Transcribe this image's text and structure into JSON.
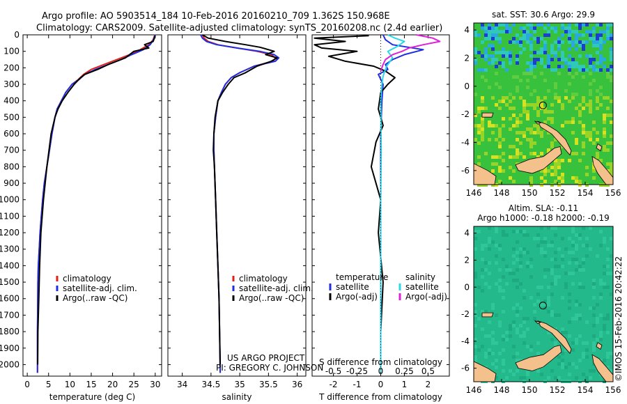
{
  "header": {
    "line1": "Argo profile: AO 5903514_184 10-Feb-2016 20160210_709 1.362S 150.968E",
    "line2": "Climatology: CARS2009. Satellite-adjusted climatology: synTS_20160208.nc (2.4d earlier)"
  },
  "colors": {
    "climatology": "#e0201b",
    "satellite": "#1f2ee0",
    "argo": "#000000",
    "sat_diff_temp": "#29d8e8",
    "argo_diff_sal": "#e020d8",
    "land": "#f4c08c",
    "ssh_sea": "#23b98a"
  },
  "footer": {
    "project": "US ARGO PROJECT",
    "pi": "PI: GREGORY C. JOHNSON",
    "imos_stamp": "©IMOS 15-Feb-2016 20:42:22"
  },
  "chart_data": [
    {
      "type": "line",
      "title": "",
      "xlabel": "temperature (deg C)",
      "ylabel": "",
      "xlim": [
        -1,
        31.5
      ],
      "ylim": [
        2070,
        0
      ],
      "xticks": [
        "0",
        "5",
        "10",
        "15",
        "20",
        "25",
        "30"
      ],
      "xtick_values": [
        0,
        5,
        10,
        15,
        20,
        25,
        30
      ],
      "yticks": [
        "0",
        "100",
        "200",
        "300",
        "400",
        "500",
        "600",
        "700",
        "800",
        "900",
        "1000",
        "1100",
        "1200",
        "1300",
        "1400",
        "1500",
        "1600",
        "1700",
        "1800",
        "1900",
        "2000"
      ],
      "ytick_values": [
        0,
        100,
        200,
        300,
        400,
        500,
        600,
        700,
        800,
        900,
        1000,
        1100,
        1200,
        1300,
        1400,
        1500,
        1600,
        1700,
        1800,
        1900,
        2000
      ],
      "legend": [
        "climatology",
        "satellite-adj. clim.",
        "Argo(..raw -QC)"
      ],
      "series": [
        {
          "name": "climatology",
          "color": "#e0201b",
          "x": [
            29.9,
            29.5,
            28.5,
            26.5,
            24.0,
            21.0,
            18.0,
            15.0,
            13.2,
            12.0,
            10.5,
            9.0,
            8.0,
            7.0,
            6.5,
            5.8,
            5.2,
            4.6,
            4.0,
            3.6,
            3.3,
            3.0,
            2.8,
            2.6,
            2.5,
            2.4,
            2.4
          ],
          "y": [
            0,
            30,
            60,
            90,
            120,
            150,
            180,
            210,
            240,
            270,
            300,
            350,
            400,
            450,
            500,
            600,
            700,
            800,
            900,
            1000,
            1100,
            1200,
            1300,
            1400,
            1500,
            1800,
            2050
          ]
        },
        {
          "name": "satellite-adj. clim.",
          "color": "#1f2ee0",
          "x": [
            30.0,
            29.6,
            28.8,
            27.2,
            24.5,
            22.0,
            19.0,
            16.0,
            13.5,
            12.2,
            10.5,
            9.0,
            8.0,
            7.0,
            6.5,
            5.8,
            5.2,
            4.6,
            4.0,
            3.6,
            3.3,
            3.0,
            2.8,
            2.6,
            2.5,
            2.4,
            2.4
          ],
          "y": [
            0,
            30,
            60,
            90,
            120,
            150,
            180,
            210,
            240,
            270,
            300,
            350,
            400,
            450,
            500,
            600,
            700,
            800,
            900,
            1000,
            1100,
            1200,
            1300,
            1400,
            1500,
            1800,
            2050
          ]
        },
        {
          "name": "Argo(..raw -QC)",
          "color": "#000000",
          "x": [
            30.0,
            29.8,
            29.5,
            27.5,
            28.5,
            25.0,
            23.0,
            19.0,
            16.5,
            13.5,
            12.5,
            11.0,
            9.5,
            8.2,
            7.2,
            6.5,
            5.6,
            4.6,
            3.8,
            3.2,
            2.9,
            2.7,
            2.5,
            2.45
          ],
          "y": [
            5,
            20,
            40,
            60,
            80,
            100,
            140,
            180,
            210,
            240,
            260,
            300,
            350,
            400,
            450,
            500,
            600,
            800,
            1000,
            1200,
            1400,
            1600,
            1800,
            2000
          ]
        }
      ]
    },
    {
      "type": "line",
      "title": "",
      "xlabel": "salinity",
      "ylabel": "",
      "xlim": [
        33.75,
        36.15
      ],
      "ylim": [
        2070,
        0
      ],
      "xticks": [
        "34",
        "34.5",
        "35",
        "35.5",
        "36"
      ],
      "xtick_values": [
        34,
        34.5,
        35,
        35.5,
        36
      ],
      "legend": [
        "climatology",
        "satellite-adj. clim.",
        "Argo(..raw -QC)"
      ],
      "series": [
        {
          "name": "climatology",
          "color": "#e0201b",
          "x": [
            34.35,
            34.38,
            34.45,
            34.62,
            34.95,
            35.3,
            35.55,
            35.62,
            35.58,
            35.25,
            35.0,
            34.85,
            34.75,
            34.68,
            34.62,
            34.58,
            34.55,
            34.55,
            34.56,
            34.58,
            34.6,
            34.62,
            34.64,
            34.65,
            34.66
          ],
          "y": [
            0,
            20,
            40,
            60,
            80,
            100,
            120,
            140,
            160,
            190,
            230,
            260,
            300,
            350,
            400,
            500,
            600,
            700,
            800,
            1000,
            1200,
            1400,
            1600,
            1800,
            2050
          ]
        },
        {
          "name": "satellite-adj. clim.",
          "color": "#1f2ee0",
          "x": [
            34.32,
            34.35,
            34.42,
            34.6,
            34.95,
            35.35,
            35.6,
            35.68,
            35.62,
            35.25,
            35.0,
            34.85,
            34.75,
            34.68,
            34.62,
            34.58,
            34.55,
            34.55,
            34.56,
            34.58,
            34.6,
            34.62,
            34.64,
            34.65,
            34.66
          ],
          "y": [
            0,
            20,
            40,
            60,
            80,
            100,
            120,
            140,
            160,
            190,
            230,
            260,
            300,
            350,
            400,
            500,
            600,
            700,
            800,
            1000,
            1200,
            1400,
            1600,
            1800,
            2050
          ]
        },
        {
          "name": "Argo(..raw -QC)",
          "color": "#000000",
          "x": [
            34.35,
            34.45,
            34.75,
            35.1,
            35.35,
            35.5,
            35.6,
            35.45,
            35.65,
            35.55,
            35.3,
            35.1,
            34.9,
            34.8,
            34.7,
            34.62,
            34.57,
            34.55,
            34.54,
            34.56,
            34.58,
            34.6,
            34.62,
            34.64,
            34.65,
            34.66
          ],
          "y": [
            0,
            20,
            40,
            60,
            75,
            90,
            100,
            120,
            140,
            160,
            190,
            230,
            260,
            300,
            350,
            400,
            500,
            600,
            700,
            800,
            1000,
            1200,
            1400,
            1600,
            1800,
            2000
          ]
        }
      ]
    },
    {
      "type": "line",
      "title": "",
      "xlabel": "T difference from climatology",
      "xlabel2": "S difference from climatology",
      "xlim": [
        -2.9,
        2.9
      ],
      "ylim": [
        2070,
        0
      ],
      "xticks": [
        "-2",
        "-1",
        "0",
        "1",
        "2"
      ],
      "xtick_values": [
        -2,
        -1,
        0,
        1,
        2
      ],
      "xticks_top": [
        "-0.5",
        "-0.25",
        "0",
        "0.25",
        "0.5"
      ],
      "xtick_top_values": [
        -0.5,
        -0.25,
        0,
        0.25,
        0.5
      ],
      "legend": [
        "temperature",
        "satellite",
        "Argo(-adj)",
        "salinity",
        "satellite",
        "Argo(-adj)"
      ],
      "series": [
        {
          "name": "T satellite - clim",
          "color": "#1f2ee0",
          "x": [
            0.1,
            0.2,
            0.5,
            1.8,
            1.0,
            0.5,
            0.2,
            0.3,
            -0.1,
            0.0,
            0.1,
            0.05,
            0.0,
            0.0,
            0.0,
            0.0
          ],
          "y": [
            0,
            30,
            60,
            90,
            120,
            150,
            180,
            210,
            240,
            270,
            300,
            400,
            600,
            1000,
            1500,
            2050
          ]
        },
        {
          "name": "T Argo - adj",
          "color": "#000000",
          "x": [
            -0.5,
            -2.8,
            -1.5,
            -2.8,
            -2.5,
            -1.0,
            -2.2,
            -1.5,
            -0.3,
            0.2,
            0.6,
            0.3,
            0.0,
            -0.1,
            0.1,
            -0.2,
            -0.4,
            0.0,
            -0.1,
            0.1,
            0.0,
            0.0
          ],
          "y": [
            5,
            20,
            40,
            60,
            80,
            100,
            130,
            160,
            190,
            220,
            260,
            300,
            350,
            450,
            550,
            650,
            800,
            1000,
            1200,
            1500,
            1800,
            2000
          ]
        },
        {
          "name": "S satellite - clim",
          "color": "#29d8e8",
          "x": [
            0.3,
            0.6,
            1.0,
            0.7,
            0.3,
            0.5,
            0.25,
            0.1,
            0.05,
            0.0,
            0.02,
            0.0,
            0.0,
            0.0
          ],
          "y": [
            0,
            20,
            40,
            70,
            100,
            140,
            190,
            250,
            300,
            400,
            700,
            1000,
            1500,
            2050
          ]
        },
        {
          "name": "S Argo - adj",
          "color": "#e020d8",
          "x": [
            1.5,
            2.2,
            2.5,
            1.8,
            1.2,
            0.9,
            0.5,
            0.2,
            0.1,
            0.0
          ],
          "y": [
            0,
            20,
            40,
            60,
            80,
            100,
            120,
            150,
            180,
            220
          ]
        }
      ]
    },
    {
      "type": "heatmap",
      "title": "sat. SST: 30.6 Argo: 29.9",
      "xlim": [
        146,
        156
      ],
      "ylim": [
        -7,
        4.5
      ],
      "xticks": [
        "146",
        "148",
        "150",
        "152",
        "154",
        "156"
      ],
      "xtick_values": [
        146,
        148,
        150,
        152,
        154,
        156
      ],
      "yticks": [
        "4",
        "2",
        "0",
        "-2",
        "-4",
        "-6"
      ],
      "ytick_values": [
        4,
        2,
        0,
        -2,
        -4,
        -6
      ],
      "marker": {
        "lon": 150.968,
        "lat": -1.362
      }
    },
    {
      "type": "heatmap",
      "title": "Altim. SLA: -0.11",
      "subtitle": "Argo h1000: -0.18 h2000: -0.19",
      "xlim": [
        146,
        156
      ],
      "ylim": [
        -7,
        4.5
      ],
      "xticks": [
        "146",
        "148",
        "150",
        "152",
        "154",
        "156"
      ],
      "xtick_values": [
        146,
        148,
        150,
        152,
        154,
        156
      ],
      "yticks": [
        "4",
        "2",
        "0",
        "-2",
        "-4",
        "-6"
      ],
      "ytick_values": [
        4,
        2,
        0,
        -2,
        -4,
        -6
      ],
      "marker": {
        "lon": 150.968,
        "lat": -1.362
      }
    }
  ]
}
